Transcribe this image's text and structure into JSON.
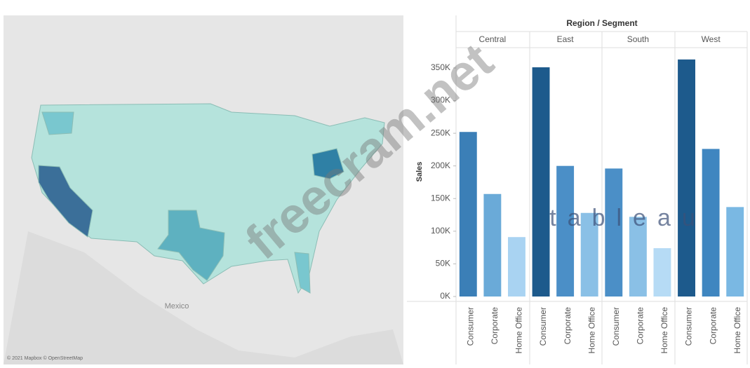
{
  "map": {
    "label": "Mexico",
    "attribution": "© 2021 Mapbox © OpenStreetMap"
  },
  "watermark": "freecram.net",
  "logo": "tableau",
  "chart_data": {
    "type": "bar",
    "title": "Region / Segment",
    "y_label": "Sales",
    "groups": [
      "Central",
      "East",
      "South",
      "West"
    ],
    "categories": [
      "Consumer",
      "Corporate",
      "Home Office",
      "Consumer",
      "Corporate",
      "Home Office",
      "Consumer",
      "Corporate",
      "Home Office",
      "Consumer",
      "Corporate",
      "Home Office"
    ],
    "values": [
      252000,
      157000,
      91000,
      351000,
      200000,
      128000,
      196000,
      122000,
      74000,
      363000,
      226000,
      137000
    ],
    "colors": [
      "#3b7fb7",
      "#6aaad8",
      "#a9d3f2",
      "#1d5a8c",
      "#4b8fc7",
      "#8ac0e6",
      "#4b8fc7",
      "#8ac0e6",
      "#b6dbf5",
      "#1d5a8c",
      "#3f86c0",
      "#7ab8e3"
    ],
    "ylim": [
      0,
      380000
    ],
    "yticks": [
      {
        "value": 0,
        "label": "0K"
      },
      {
        "value": 50000,
        "label": "50K"
      },
      {
        "value": 100000,
        "label": "100K"
      },
      {
        "value": 150000,
        "label": "150K"
      },
      {
        "value": 200000,
        "label": "200K"
      },
      {
        "value": 250000,
        "label": "250K"
      },
      {
        "value": 300000,
        "label": "300K"
      },
      {
        "value": 350000,
        "label": "350K"
      }
    ],
    "grid": false
  }
}
